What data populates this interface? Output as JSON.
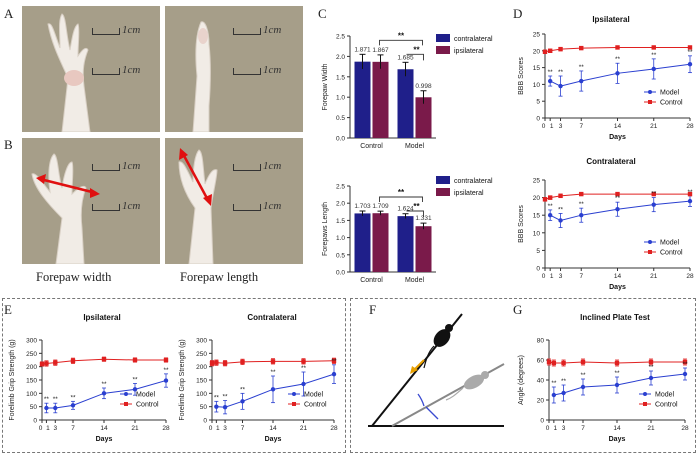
{
  "panel_labels": {
    "a": "A",
    "b": "B",
    "c": "C",
    "d": "D",
    "e": "E",
    "f": "F",
    "g": "G"
  },
  "photo_scale_label": "1cm",
  "captions": {
    "width": "Forepaw   width",
    "length": "Forepaw   length"
  },
  "colors": {
    "navy": "#1f1f8a",
    "maroon": "#7a1a4a",
    "model_blue": "#2a3fd0",
    "control_red": "#e02020",
    "arrow_red": "#e01010",
    "arrow_orange": "#e8a000"
  },
  "chart_data": [
    {
      "id": "c_width",
      "type": "bar",
      "categories": [
        "Control",
        "Model"
      ],
      "series": [
        {
          "name": "contralateral",
          "values": [
            1.871,
            1.685
          ],
          "errors": [
            0.18,
            0.17
          ],
          "color": "#1f1f8a"
        },
        {
          "name": "ipsilateral",
          "values": [
            1.867,
            0.998
          ],
          "errors": [
            0.17,
            0.16
          ],
          "color": "#7a1a4a"
        }
      ],
      "value_labels": [
        [
          "1.871",
          "1.685"
        ],
        [
          "1.867",
          "0.998"
        ]
      ],
      "ylabel": "Forepaw  Width",
      "ylim": [
        0,
        2.5
      ],
      "yticks": [
        0.0,
        0.5,
        1.0,
        1.5,
        2.0,
        2.5
      ],
      "ytick_labels": [
        "0.0",
        "0.5",
        "1.0",
        "1.5",
        "2.0",
        "2.5"
      ],
      "significance": [
        "**",
        "**"
      ]
    },
    {
      "id": "c_length",
      "type": "bar",
      "categories": [
        "Control",
        "Model"
      ],
      "series": [
        {
          "name": "contralateral",
          "values": [
            1.703,
            1.624
          ],
          "errors": [
            0.07,
            0.07
          ],
          "color": "#1f1f8a"
        },
        {
          "name": "ipsilateral",
          "values": [
            1.709,
            1.331
          ],
          "errors": [
            0.06,
            0.09
          ],
          "color": "#7a1a4a"
        }
      ],
      "value_labels": [
        [
          "1.703",
          "1.624"
        ],
        [
          "1.709",
          "1.331"
        ]
      ],
      "ylabel": "Forepaws  Length",
      "ylim": [
        0,
        2.5
      ],
      "yticks": [
        0.0,
        0.5,
        1.0,
        1.5,
        2.0,
        2.5
      ],
      "ytick_labels": [
        "0.0",
        "0.5",
        "1.0",
        "1.5",
        "2.0",
        "2.5"
      ],
      "significance": [
        "**",
        "**"
      ]
    },
    {
      "id": "d_ipsi",
      "type": "line",
      "title": "Ipsilateral",
      "xlabel": "Days",
      "ylabel": "BBB Scores",
      "x": [
        0,
        1,
        3,
        7,
        14,
        21,
        28
      ],
      "xtick_labels": [
        "0",
        "1",
        "3",
        "7",
        "14",
        "21",
        "28"
      ],
      "xlim": [
        0,
        28
      ],
      "ylim": [
        0,
        25
      ],
      "yticks": [
        0,
        5,
        10,
        15,
        20,
        25
      ],
      "ytick_labels": [
        "0",
        "5",
        "10",
        "15",
        "20",
        "25"
      ],
      "series": [
        {
          "name": "Model",
          "x": [
            1,
            3,
            7,
            14,
            21,
            28
          ],
          "values": [
            11,
            9.5,
            11,
            13.3,
            14.6,
            16
          ],
          "errors": [
            1.5,
            3,
            3,
            3,
            3,
            2.5
          ],
          "color": "#2a3fd0",
          "marker": "circle"
        },
        {
          "name": "Control",
          "x": [
            0,
            1,
            3,
            7,
            14,
            21,
            28
          ],
          "values": [
            19.7,
            20,
            20.5,
            20.8,
            21,
            21,
            21
          ],
          "errors": [
            0.5,
            0.5,
            0.5,
            0.4,
            0.3,
            0.3,
            0.3
          ],
          "color": "#e02020",
          "marker": "square"
        }
      ],
      "annotations": [
        "**",
        "**",
        "**",
        "**",
        "**",
        "**"
      ],
      "legend": "right"
    },
    {
      "id": "d_contra",
      "type": "line",
      "title": "Contralateral",
      "xlabel": "Days",
      "ylabel": "BBB Scores",
      "x": [
        0,
        1,
        3,
        7,
        14,
        21,
        28
      ],
      "xtick_labels": [
        "0",
        "1",
        "3",
        "7",
        "14",
        "21",
        "28"
      ],
      "xlim": [
        0,
        28
      ],
      "ylim": [
        0,
        25
      ],
      "yticks": [
        0,
        5,
        10,
        15,
        20,
        25
      ],
      "ytick_labels": [
        "0",
        "5",
        "10",
        "15",
        "20",
        "25"
      ],
      "series": [
        {
          "name": "Model",
          "x": [
            1,
            3,
            7,
            14,
            21,
            28
          ],
          "values": [
            15,
            13.5,
            15,
            16.7,
            18,
            19
          ],
          "errors": [
            1.5,
            2,
            2,
            2,
            2,
            1.5
          ],
          "color": "#2a3fd0",
          "marker": "circle"
        },
        {
          "name": "Control",
          "x": [
            0,
            1,
            3,
            7,
            14,
            21,
            28
          ],
          "values": [
            19.5,
            20,
            20.5,
            21,
            21,
            21,
            21
          ],
          "errors": [
            0.5,
            0.5,
            0.5,
            0.4,
            0.3,
            0.3,
            0.3
          ],
          "color": "#e02020",
          "marker": "square"
        }
      ],
      "annotations": [
        "**",
        "**",
        "**",
        "**",
        "**",
        "**"
      ],
      "legend": "right"
    },
    {
      "id": "e_ipsi",
      "type": "line",
      "title": "Ipsilateral",
      "xlabel": "Days",
      "ylabel": "Forelimb Grip Strength (g)",
      "x": [
        0,
        1,
        3,
        7,
        14,
        21,
        28
      ],
      "xtick_labels": [
        "0",
        "1",
        "3",
        "7",
        "14",
        "21",
        "28"
      ],
      "xlim": [
        0,
        28
      ],
      "ylim": [
        0,
        300
      ],
      "yticks": [
        0,
        50,
        100,
        150,
        200,
        250,
        300
      ],
      "ytick_labels": [
        "0",
        "50",
        "100",
        "150",
        "200",
        "250",
        "300"
      ],
      "series": [
        {
          "name": "Model",
          "x": [
            1,
            3,
            7,
            14,
            21,
            28
          ],
          "values": [
            45,
            45,
            55,
            100,
            115,
            148
          ],
          "errors": [
            18,
            18,
            15,
            20,
            22,
            25
          ],
          "color": "#2a3fd0",
          "marker": "circle"
        },
        {
          "name": "Control",
          "x": [
            0,
            1,
            3,
            7,
            14,
            21,
            28
          ],
          "values": [
            210,
            212,
            215,
            222,
            228,
            225,
            225
          ],
          "errors": [
            8,
            10,
            10,
            10,
            8,
            8,
            8
          ],
          "color": "#e02020",
          "marker": "square"
        }
      ],
      "annotations": [
        "**",
        "**",
        "**",
        "**",
        "**",
        "**"
      ],
      "legend": "right"
    },
    {
      "id": "e_contra",
      "type": "line",
      "title": "Contralateral",
      "xlabel": "Days",
      "ylabel": "Forelimb Grip Strength (g)",
      "x": [
        0,
        1,
        3,
        7,
        14,
        21,
        28
      ],
      "xtick_labels": [
        "0",
        "1",
        "3",
        "7",
        "14",
        "21",
        "28"
      ],
      "xlim": [
        0,
        28
      ],
      "ylim": [
        0,
        300
      ],
      "yticks": [
        0,
        50,
        100,
        150,
        200,
        250,
        300
      ],
      "ytick_labels": [
        "0",
        "50",
        "100",
        "150",
        "200",
        "250",
        "300"
      ],
      "series": [
        {
          "name": "Model",
          "x": [
            1,
            3,
            7,
            14,
            21,
            28
          ],
          "values": [
            50,
            48,
            70,
            115,
            135,
            172
          ],
          "errors": [
            20,
            25,
            30,
            50,
            45,
            35
          ],
          "color": "#2a3fd0",
          "marker": "circle"
        },
        {
          "name": "Control",
          "x": [
            0,
            1,
            3,
            7,
            14,
            21,
            28
          ],
          "values": [
            213,
            215,
            213,
            218,
            220,
            220,
            222
          ],
          "errors": [
            10,
            10,
            10,
            10,
            10,
            10,
            10
          ],
          "color": "#e02020",
          "marker": "square"
        }
      ],
      "annotations": [
        "**",
        "**",
        "**",
        "**",
        "**",
        "**"
      ],
      "legend": "right"
    },
    {
      "id": "g_plate",
      "type": "line",
      "title": "Inclined Plate Test",
      "xlabel": "Days",
      "ylabel": "Angle (degrees)",
      "x": [
        0,
        1,
        3,
        7,
        14,
        21,
        28
      ],
      "xtick_labels": [
        "0",
        "1",
        "3",
        "7",
        "14",
        "21",
        "28"
      ],
      "xlim": [
        0,
        28
      ],
      "ylim": [
        0,
        80
      ],
      "yticks": [
        0,
        20,
        40,
        60,
        80
      ],
      "ytick_labels": [
        "0",
        "20",
        "40",
        "60",
        "80"
      ],
      "series": [
        {
          "name": "Model",
          "x": [
            1,
            3,
            7,
            14,
            21,
            28
          ],
          "values": [
            25,
            27,
            33,
            35,
            42,
            46
          ],
          "errors": [
            8,
            8,
            8,
            8,
            7,
            6
          ],
          "color": "#2a3fd0",
          "marker": "circle"
        },
        {
          "name": "Control",
          "x": [
            0,
            1,
            3,
            7,
            14,
            21,
            28
          ],
          "values": [
            58,
            57,
            57,
            58,
            57,
            58,
            58
          ],
          "errors": [
            3,
            3,
            3,
            3,
            3,
            3,
            3
          ],
          "color": "#e02020",
          "marker": "square"
        }
      ],
      "annotations": [
        "**",
        "**",
        "**",
        "**",
        "**",
        "**"
      ],
      "legend": "right"
    }
  ]
}
